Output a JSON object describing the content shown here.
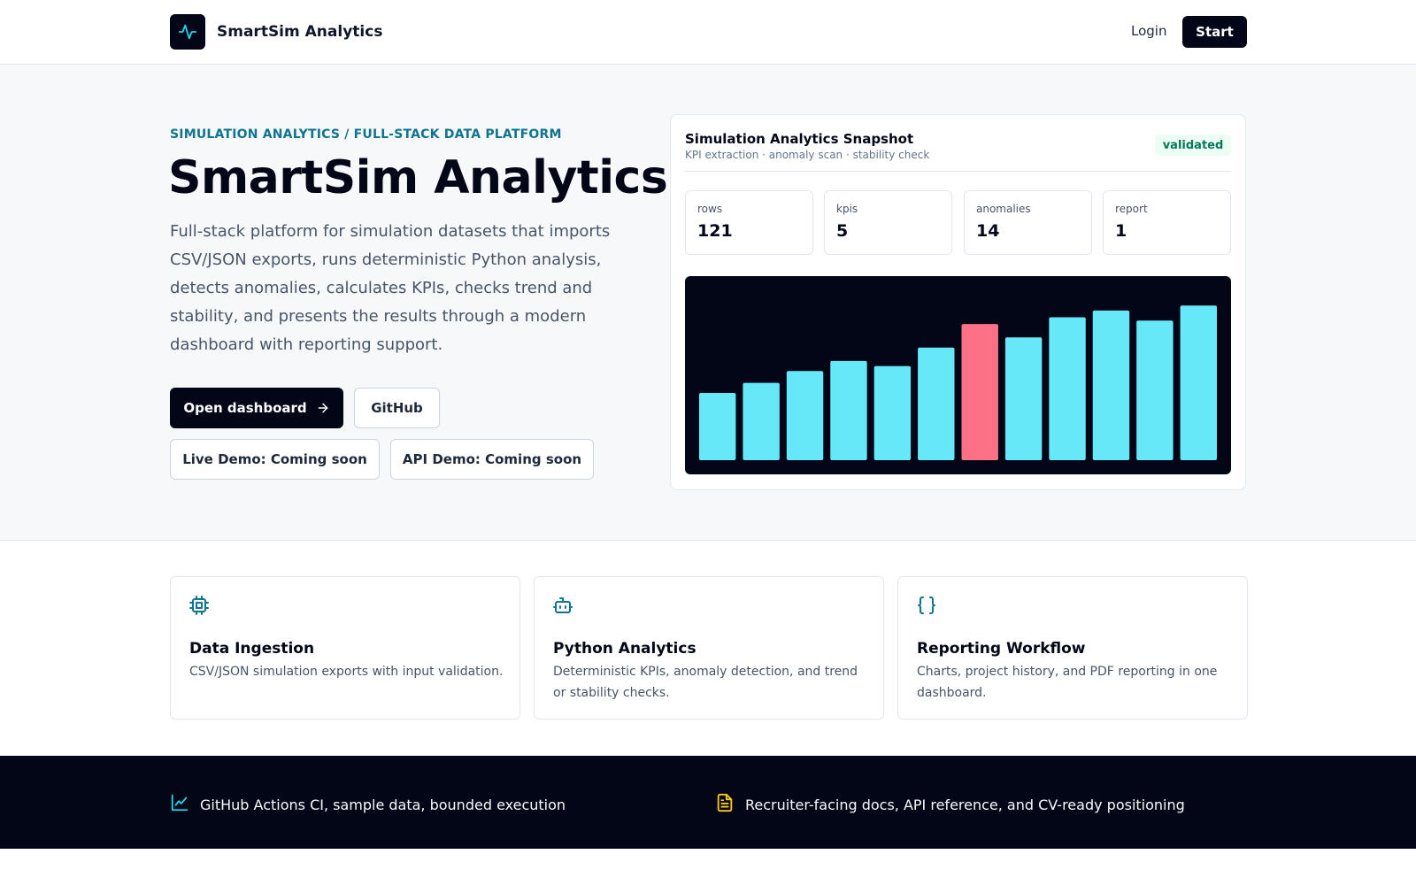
{
  "header": {
    "brand": "SmartSim Analytics",
    "login": "Login",
    "start": "Start"
  },
  "hero": {
    "eyebrow": "SIMULATION ANALYTICS / FULL-STACK DATA PLATFORM",
    "title": "SmartSim Analytics",
    "description": "Full-stack platform for simulation datasets that imports CSV/JSON exports, runs deterministic Python analysis, detects anomalies, calculates KPIs, checks trend and stability, and presents the results through a modern dashboard with reporting support.",
    "buttons": {
      "dashboard": "Open dashboard",
      "github": "GitHub",
      "live_demo": "Live Demo: Coming soon",
      "api_demo": "API Demo: Coming soon"
    }
  },
  "snapshot": {
    "title": "Simulation Analytics Snapshot",
    "subtitle": "KPI extraction · anomaly scan · stability check",
    "badge": "validated",
    "kpis": [
      {
        "label": "rows",
        "value": "121"
      },
      {
        "label": "kpis",
        "value": "5"
      },
      {
        "label": "anomalies",
        "value": "14"
      },
      {
        "label": "report",
        "value": "1"
      }
    ]
  },
  "chart_data": {
    "type": "bar",
    "values": [
      40,
      46,
      53,
      59,
      56,
      67,
      81,
      73,
      85,
      89,
      83,
      92
    ],
    "highlight_index": 6,
    "colors": {
      "normal": "#67e8f9",
      "highlight": "#fb7185",
      "background": "#020617"
    },
    "ylim": [
      0,
      100
    ]
  },
  "features": [
    {
      "icon": "cpu-icon",
      "title": "Data Ingestion",
      "description": "CSV/JSON simulation exports with input validation."
    },
    {
      "icon": "bot-icon",
      "title": "Python Analytics",
      "description": "Deterministic KPIs, anomaly detection, and trend or stability checks."
    },
    {
      "icon": "braces-icon",
      "title": "Reporting Workflow",
      "description": "Charts, project history, and PDF reporting in one dashboard."
    }
  ],
  "band": [
    {
      "icon": "line-chart-icon",
      "text": "GitHub Actions CI, sample data, bounded execution"
    },
    {
      "icon": "file-text-icon",
      "text": "Recruiter-facing docs, API reference, and CV-ready positioning"
    }
  ],
  "colors": {
    "accent": "#0e7490",
    "dark": "#020617",
    "success": "#047857"
  }
}
